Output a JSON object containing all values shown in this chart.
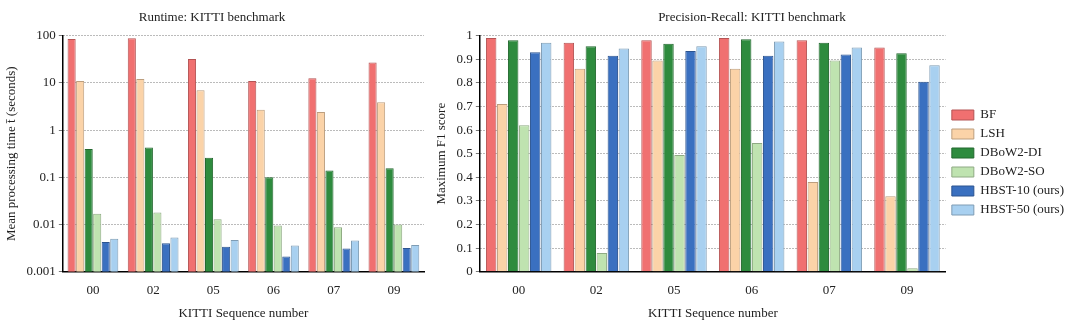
{
  "chart_data": [
    {
      "type": "bar",
      "title": "Runtime: KITTI benchmark",
      "xlabel": "KITTI Sequence number",
      "ylabel": "Mean processing time t̄ (seconds)",
      "categories": [
        "00",
        "02",
        "05",
        "06",
        "07",
        "09"
      ],
      "log": true,
      "ylim": [
        0.001,
        100
      ],
      "yticks": [
        0.001,
        0.01,
        0.1,
        1,
        10,
        100
      ],
      "grid": "y",
      "legend": false,
      "series": [
        {
          "color": "#f07070",
          "values": [
            85,
            88,
            32,
            11,
            12.5,
            27
          ]
        },
        {
          "color": "#fbd3a8",
          "values": [
            11,
            12,
            7,
            2.7,
            2.4,
            3.9
          ]
        },
        {
          "color": "#2e8b3e",
          "values": [
            0.4,
            0.43,
            0.26,
            0.1,
            0.14,
            0.155
          ]
        },
        {
          "color": "#bfe3b0",
          "values": [
            0.017,
            0.018,
            0.013,
            0.0095,
            0.0088,
            0.01
          ]
        },
        {
          "color": "#3a70c0",
          "values": [
            0.0043,
            0.004,
            0.0034,
            0.0021,
            0.0031,
            0.0032
          ]
        },
        {
          "color": "#a8d0f0",
          "values": [
            0.005,
            0.0053,
            0.0047,
            0.0036,
            0.0046,
            0.0037
          ]
        }
      ]
    },
    {
      "type": "bar",
      "title": "Precision-Recall: KITTI benchmark",
      "xlabel": "KITTI Sequence number",
      "ylabel": "Maximum F1 score",
      "categories": [
        "00",
        "02",
        "05",
        "06",
        "07",
        "09"
      ],
      "ylim": [
        0,
        1
      ],
      "yticks": [
        0,
        0.1,
        0.2,
        0.3,
        0.4,
        0.5,
        0.6,
        0.7,
        0.8,
        0.9,
        1
      ],
      "grid": "y",
      "legend": "right",
      "series": [
        {
          "name": "BF",
          "color": "#f07070",
          "values": [
            0.99,
            0.97,
            0.98,
            0.99,
            0.98,
            0.95
          ]
        },
        {
          "name": "LSH",
          "color": "#fbd3a8",
          "values": [
            0.71,
            0.86,
            0.895,
            0.86,
            0.38,
            0.32
          ]
        },
        {
          "name": "DBoW2-DI",
          "color": "#2e8b3e",
          "values": [
            0.98,
            0.955,
            0.965,
            0.985,
            0.97,
            0.925
          ]
        },
        {
          "name": "DBoW2-SO",
          "color": "#bfe3b0",
          "values": [
            0.62,
            0.08,
            0.495,
            0.545,
            0.895,
            0.015
          ]
        },
        {
          "name": "HBST-10 (ours)",
          "color": "#3a70c0",
          "values": [
            0.93,
            0.915,
            0.935,
            0.915,
            0.92,
            0.805
          ]
        },
        {
          "name": "HBST-50 (ours)",
          "color": "#a8d0f0",
          "values": [
            0.97,
            0.945,
            0.955,
            0.975,
            0.95,
            0.875
          ]
        }
      ]
    }
  ]
}
